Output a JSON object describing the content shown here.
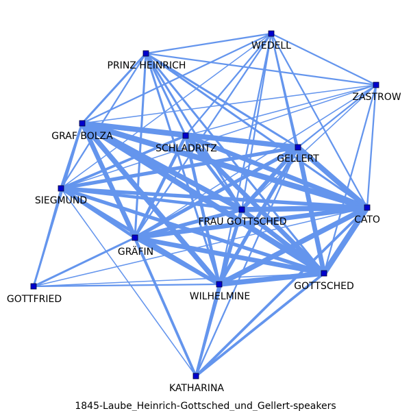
{
  "caption": "1845-Laube_Heinrich-Gottsched_und_Gellert-speakers",
  "colors": {
    "edge": "#6495ED",
    "node": "#0000CD"
  },
  "nodes": [
    {
      "id": "wedell",
      "label": "WEDELL"
    },
    {
      "id": "prinz",
      "label": "PRINZ HEINRICH"
    },
    {
      "id": "zastrow",
      "label": "ZASTROW"
    },
    {
      "id": "bolza",
      "label": "GRAF BOLZA"
    },
    {
      "id": "schladritz",
      "label": "SCHLADRITZ"
    },
    {
      "id": "gellert",
      "label": "GELLERT"
    },
    {
      "id": "siegmund",
      "label": "SIEGMUND"
    },
    {
      "id": "fraugottsched",
      "label": "FRAU GOTTSCHED"
    },
    {
      "id": "cato",
      "label": "CATO"
    },
    {
      "id": "graefin",
      "label": "GRÄFIN"
    },
    {
      "id": "gottsched",
      "label": "GOTTSCHED"
    },
    {
      "id": "wilhelmine",
      "label": "WILHELMINE"
    },
    {
      "id": "gottfried",
      "label": "GOTTFRIED"
    },
    {
      "id": "katharina",
      "label": "KATHARINA"
    }
  ],
  "edges": [
    {
      "source": "bolza",
      "target": "schladritz",
      "weight": 8
    },
    {
      "source": "bolza",
      "target": "gellert",
      "weight": 9
    },
    {
      "source": "bolza",
      "target": "cato",
      "weight": 10
    },
    {
      "source": "bolza",
      "target": "gottsched",
      "weight": 10
    },
    {
      "source": "bolza",
      "target": "fraugottsched",
      "weight": 9
    },
    {
      "source": "bolza",
      "target": "wilhelmine",
      "weight": 9
    },
    {
      "source": "bolza",
      "target": "graefin",
      "weight": 8
    },
    {
      "source": "bolza",
      "target": "siegmund",
      "weight": 4
    },
    {
      "source": "bolza",
      "target": "gottfried",
      "weight": 3
    },
    {
      "source": "bolza",
      "target": "prinz",
      "weight": 3
    },
    {
      "source": "bolza",
      "target": "wedell",
      "weight": 2
    },
    {
      "source": "bolza",
      "target": "zastrow",
      "weight": 1
    },
    {
      "source": "schladritz",
      "target": "gellert",
      "weight": 7
    },
    {
      "source": "schladritz",
      "target": "cato",
      "weight": 8
    },
    {
      "source": "schladritz",
      "target": "gottsched",
      "weight": 8
    },
    {
      "source": "schladritz",
      "target": "fraugottsched",
      "weight": 5
    },
    {
      "source": "schladritz",
      "target": "wilhelmine",
      "weight": 5
    },
    {
      "source": "schladritz",
      "target": "graefin",
      "weight": 5
    },
    {
      "source": "schladritz",
      "target": "siegmund",
      "weight": 4
    },
    {
      "source": "schladritz",
      "target": "prinz",
      "weight": 3
    },
    {
      "source": "schladritz",
      "target": "wedell",
      "weight": 2
    },
    {
      "source": "schladritz",
      "target": "zastrow",
      "weight": 1
    },
    {
      "source": "gellert",
      "target": "cato",
      "weight": 9
    },
    {
      "source": "gellert",
      "target": "gottsched",
      "weight": 8
    },
    {
      "source": "gellert",
      "target": "fraugottsched",
      "weight": 7
    },
    {
      "source": "gellert",
      "target": "wilhelmine",
      "weight": 6
    },
    {
      "source": "gellert",
      "target": "graefin",
      "weight": 6
    },
    {
      "source": "gellert",
      "target": "siegmund",
      "weight": 6
    },
    {
      "source": "gellert",
      "target": "prinz",
      "weight": 3
    },
    {
      "source": "gellert",
      "target": "wedell",
      "weight": 2
    },
    {
      "source": "gellert",
      "target": "zastrow",
      "weight": 2
    },
    {
      "source": "gellert",
      "target": "katharina",
      "weight": 2
    },
    {
      "source": "cato",
      "target": "gottsched",
      "weight": 10
    },
    {
      "source": "cato",
      "target": "fraugottsched",
      "weight": 9
    },
    {
      "source": "cato",
      "target": "wilhelmine",
      "weight": 9
    },
    {
      "source": "cato",
      "target": "graefin",
      "weight": 8
    },
    {
      "source": "cato",
      "target": "siegmund",
      "weight": 6
    },
    {
      "source": "cato",
      "target": "prinz",
      "weight": 3
    },
    {
      "source": "cato",
      "target": "wedell",
      "weight": 2
    },
    {
      "source": "cato",
      "target": "zastrow",
      "weight": 2
    },
    {
      "source": "cato",
      "target": "katharina",
      "weight": 4
    },
    {
      "source": "gottsched",
      "target": "fraugottsched",
      "weight": 8
    },
    {
      "source": "gottsched",
      "target": "wilhelmine",
      "weight": 9
    },
    {
      "source": "gottsched",
      "target": "graefin",
      "weight": 8
    },
    {
      "source": "gottsched",
      "target": "siegmund",
      "weight": 6
    },
    {
      "source": "gottsched",
      "target": "prinz",
      "weight": 3
    },
    {
      "source": "gottsched",
      "target": "wedell",
      "weight": 2
    },
    {
      "source": "gottsched",
      "target": "zastrow",
      "weight": 2
    },
    {
      "source": "gottsched",
      "target": "katharina",
      "weight": 4
    },
    {
      "source": "fraugottsched",
      "target": "wilhelmine",
      "weight": 6
    },
    {
      "source": "fraugottsched",
      "target": "graefin",
      "weight": 6
    },
    {
      "source": "fraugottsched",
      "target": "siegmund",
      "weight": 5
    },
    {
      "source": "fraugottsched",
      "target": "prinz",
      "weight": 3
    },
    {
      "source": "fraugottsched",
      "target": "wedell",
      "weight": 2
    },
    {
      "source": "fraugottsched",
      "target": "zastrow",
      "weight": 1
    },
    {
      "source": "fraugottsched",
      "target": "katharina",
      "weight": 3
    },
    {
      "source": "wilhelmine",
      "target": "graefin",
      "weight": 6
    },
    {
      "source": "wilhelmine",
      "target": "siegmund",
      "weight": 5
    },
    {
      "source": "wilhelmine",
      "target": "gottfried",
      "weight": 2
    },
    {
      "source": "wilhelmine",
      "target": "katharina",
      "weight": 4
    },
    {
      "source": "wilhelmine",
      "target": "prinz",
      "weight": 3
    },
    {
      "source": "wilhelmine",
      "target": "wedell",
      "weight": 2
    },
    {
      "source": "graefin",
      "target": "siegmund",
      "weight": 5
    },
    {
      "source": "graefin",
      "target": "gottfried",
      "weight": 3
    },
    {
      "source": "graefin",
      "target": "katharina",
      "weight": 4
    },
    {
      "source": "graefin",
      "target": "prinz",
      "weight": 3
    },
    {
      "source": "graefin",
      "target": "wedell",
      "weight": 2
    },
    {
      "source": "graefin",
      "target": "zastrow",
      "weight": 1
    },
    {
      "source": "siegmund",
      "target": "gottfried",
      "weight": 1
    },
    {
      "source": "siegmund",
      "target": "katharina",
      "weight": 1
    },
    {
      "source": "siegmund",
      "target": "prinz",
      "weight": 2
    },
    {
      "source": "siegmund",
      "target": "wedell",
      "weight": 1
    },
    {
      "source": "siegmund",
      "target": "zastrow",
      "weight": 1
    },
    {
      "source": "prinz",
      "target": "wedell",
      "weight": 2
    },
    {
      "source": "prinz",
      "target": "zastrow",
      "weight": 2
    },
    {
      "source": "wedell",
      "target": "zastrow",
      "weight": 2
    },
    {
      "source": "gottfried",
      "target": "gottsched",
      "weight": 1
    },
    {
      "source": "gottfried",
      "target": "cato",
      "weight": 1
    },
    {
      "source": "katharina",
      "target": "bolza",
      "weight": 1
    }
  ]
}
